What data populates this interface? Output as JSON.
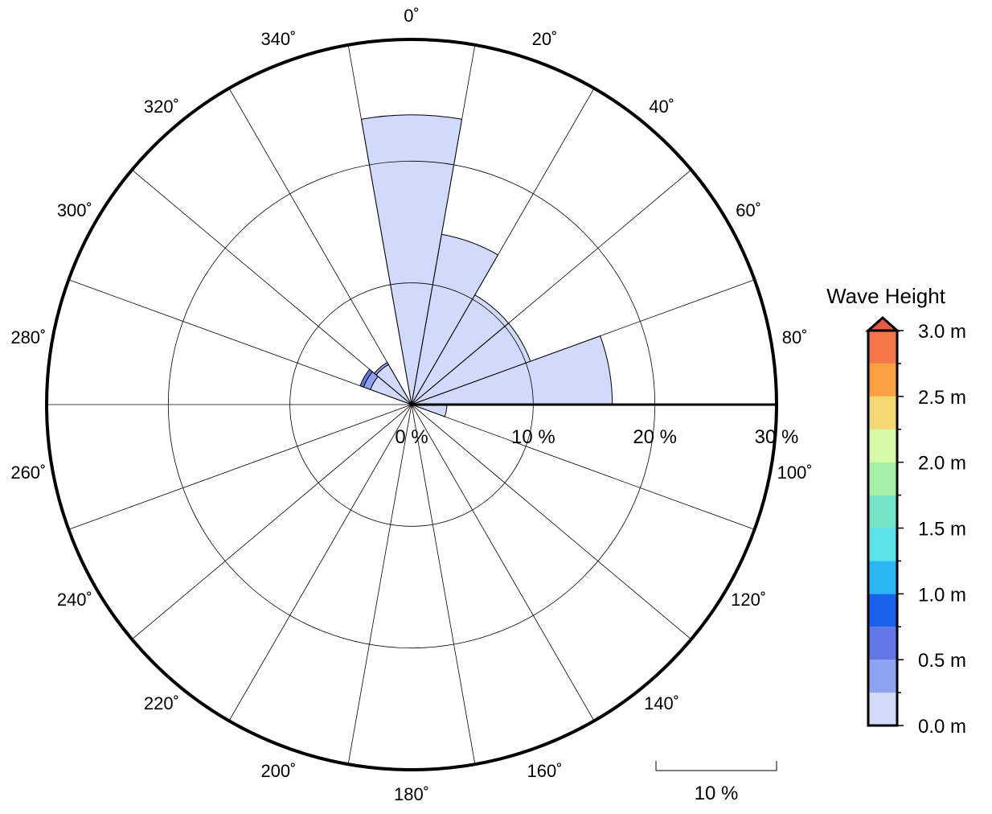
{
  "chart_data": {
    "type": "polar-bar",
    "title": "",
    "radial_labels": [
      "0 %",
      "10 %",
      "20 %",
      "30 %"
    ],
    "radial_max": 30,
    "radial_rings": [
      10,
      20,
      30
    ],
    "sector_width_deg": 20,
    "angle_labels": [
      "0˚",
      "20˚",
      "40˚",
      "60˚",
      "80˚",
      "100˚",
      "120˚",
      "140˚",
      "160˚",
      "180˚",
      "200˚",
      "220˚",
      "240˚",
      "260˚",
      "280˚",
      "300˚",
      "320˚",
      "340˚"
    ],
    "sectors": [
      {
        "center_deg": 0,
        "bins": [
          23.8
        ]
      },
      {
        "center_deg": 20,
        "bins": [
          14.2
        ]
      },
      {
        "center_deg": 40,
        "bins": [
          10.4
        ]
      },
      {
        "center_deg": 60,
        "bins": [
          10.4
        ]
      },
      {
        "center_deg": 80,
        "bins": [
          16.5
        ]
      },
      {
        "center_deg": 100,
        "bins": [
          2.9
        ]
      },
      {
        "center_deg": 300,
        "bins": [
          3.6,
          0.6,
          0.3
        ]
      },
      {
        "center_deg": 320,
        "bins": [
          3.8,
          0.2
        ]
      }
    ],
    "colorbar": {
      "title": "Wave Height",
      "unit": "m",
      "tick_labels": [
        "0.0 m",
        "0.5 m",
        "1.0 m",
        "1.5 m",
        "2.0 m",
        "2.5 m",
        "3.0 m"
      ],
      "range": [
        0,
        3
      ],
      "bin_width": 0.25,
      "colors": [
        "#d1dafa",
        "#8fa3f0",
        "#6377e6",
        "#1a62eb",
        "#2bb6f5",
        "#5be1ea",
        "#72e5c8",
        "#a7f1a6",
        "#d7f8a7",
        "#f3d770",
        "#f9a043",
        "#f3774a"
      ],
      "overflow_color": "#e25a4a"
    },
    "scale_bar_label": "10 %",
    "grid": true
  }
}
